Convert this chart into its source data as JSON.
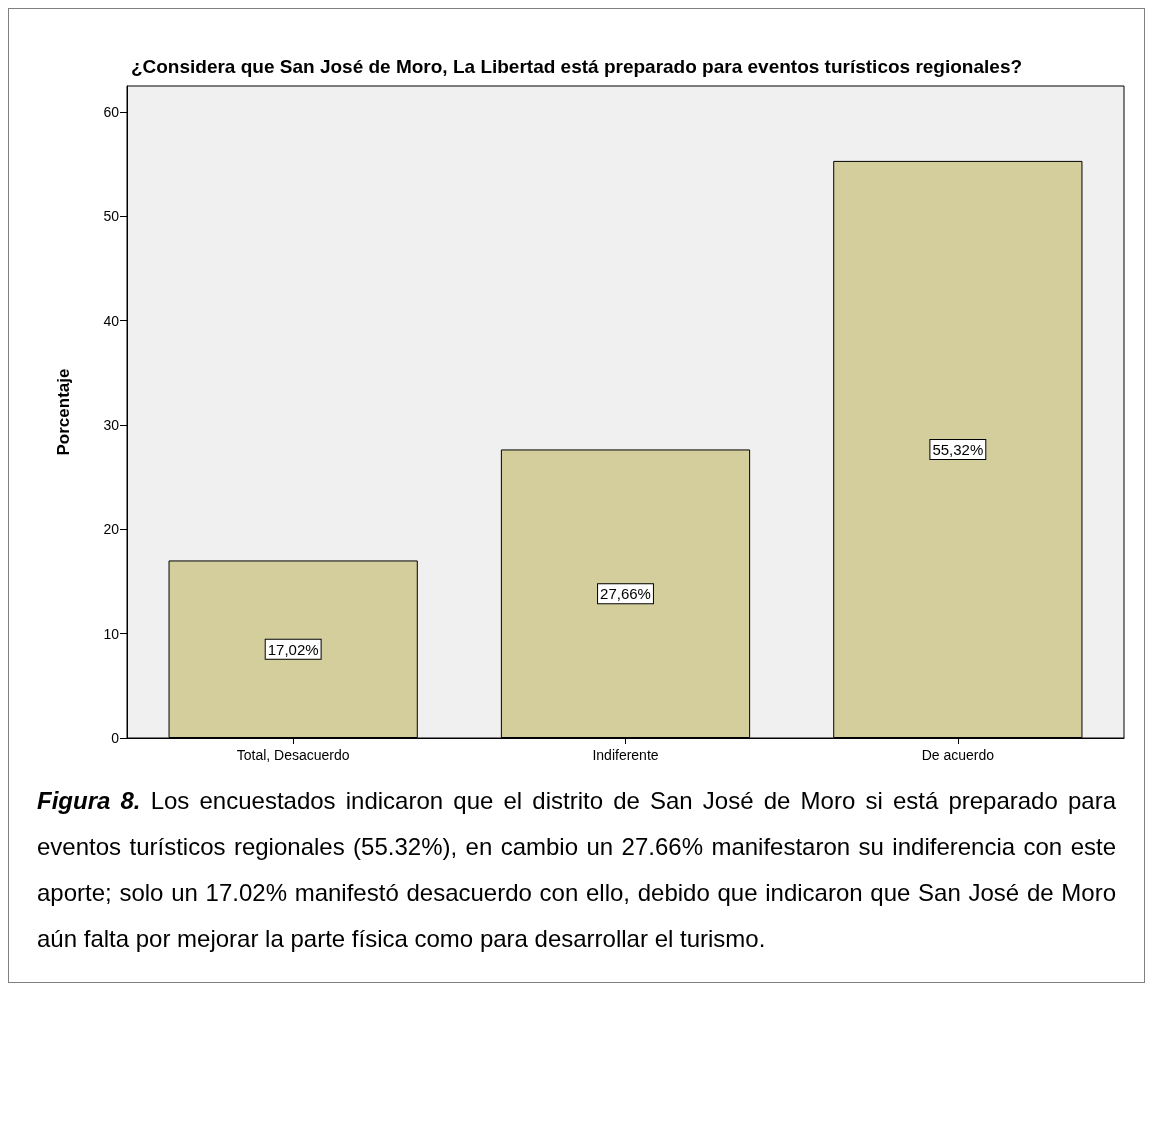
{
  "chart_data": {
    "type": "bar",
    "title": "¿Considera que San José de Moro, La Libertad está preparado para eventos turísticos regionales?",
    "ylabel": "Porcentaje",
    "categories": [
      "Total, Desacuerdo",
      "Indiferente",
      "De acuerdo"
    ],
    "values": [
      17.02,
      27.66,
      55.32
    ],
    "value_labels": [
      "17,02%",
      "27,66%",
      "55,32%"
    ],
    "color": "#d3ce9b",
    "ylim": [
      0,
      62.5
    ],
    "yticks": [
      0,
      10,
      20,
      30,
      40,
      50,
      60
    ],
    "grid": false,
    "annotations": [
      "Figura 8.",
      "Los encuestados indicaron que el distrito de San José de Moro si está preparado para eventos turísticos regionales (55.32%), en cambio un 27.66% manifestaron su indiferencia con este aporte; solo un 17.02% manifestó desacuerdo con ello, debido que indicaron que San José de Moro aún falta por mejorar la parte física como para desarrollar el turismo."
    ]
  }
}
